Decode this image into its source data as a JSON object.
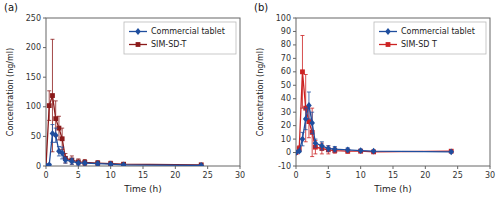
{
  "chart_data": [
    {
      "type": "line",
      "title": "(a)",
      "xlabel": "Time (h)",
      "ylabel": "Concentration (ng/ml)",
      "x": [
        0,
        0.5,
        1.0,
        1.5,
        2.0,
        2.5,
        3.0,
        4.0,
        5.0,
        6.0,
        8.0,
        10.0,
        12.0,
        24.0
      ],
      "series": [
        {
          "name": "Commercial tablet",
          "color": "#1f4e9e",
          "marker": "diamond",
          "line_style": "solid",
          "values": [
            0,
            2,
            55,
            52,
            25,
            22,
            10,
            8,
            5,
            5,
            4,
            3,
            2,
            1
          ],
          "errors": [
            0,
            2,
            15,
            12,
            8,
            10,
            5,
            5,
            3,
            3,
            3,
            2,
            2,
            1
          ]
        },
        {
          "name": "SIM-SD-T",
          "color": "#8b1a1a",
          "marker": "square",
          "line_style": "solid",
          "values": [
            0,
            102,
            119,
            80,
            64,
            46,
            13,
            10,
            7,
            6,
            5,
            4,
            3,
            2
          ],
          "errors": [
            0,
            25,
            95,
            30,
            20,
            18,
            8,
            7,
            5,
            5,
            4,
            4,
            3,
            2
          ]
        }
      ],
      "xlim": [
        0,
        30
      ],
      "ylim": [
        0,
        250
      ],
      "xticks": [
        0,
        5,
        10,
        15,
        20,
        25,
        30
      ],
      "yticks": [
        0,
        50,
        100,
        150,
        200,
        250
      ],
      "grid": false,
      "legend": "upper right"
    },
    {
      "type": "line",
      "title": "(b)",
      "xlabel": "Time (h)",
      "ylabel": "Concentration (ng/ml)",
      "x": [
        0,
        0.5,
        1.0,
        1.5,
        2.0,
        2.5,
        3.0,
        4.0,
        5.0,
        6.0,
        8.0,
        10.0,
        12.0,
        24.0
      ],
      "series": [
        {
          "name": "Commercial tablet",
          "color": "#1f4e9e",
          "marker": "diamond",
          "line_style": "solid",
          "values": [
            0,
            1,
            10,
            25,
            35,
            22,
            7,
            5,
            3,
            2.5,
            2,
            1.5,
            1,
            0.5
          ],
          "errors": [
            0,
            1,
            5,
            8,
            10,
            8,
            3,
            3,
            2,
            2,
            1.5,
            1,
            0.5,
            0.5
          ]
        },
        {
          "name": "SIM-SD T",
          "color": "#cc2222",
          "marker": "square",
          "line_style": "solid",
          "values": [
            0,
            3,
            60,
            33,
            23,
            15,
            4,
            3,
            2,
            1.5,
            1,
            1,
            0.5,
            1
          ],
          "errors": [
            0,
            2,
            27,
            25,
            12,
            18,
            5,
            4,
            3,
            2,
            1.5,
            1,
            0.5,
            0.5
          ]
        }
      ],
      "xlim": [
        0,
        30
      ],
      "ylim": [
        -10,
        100
      ],
      "xticks": [
        0,
        5,
        10,
        15,
        20,
        25,
        30
      ],
      "yticks": [
        -10,
        0,
        10,
        20,
        30,
        40,
        50,
        60,
        70,
        80,
        90,
        100
      ],
      "grid": false,
      "legend": "upper right"
    }
  ]
}
